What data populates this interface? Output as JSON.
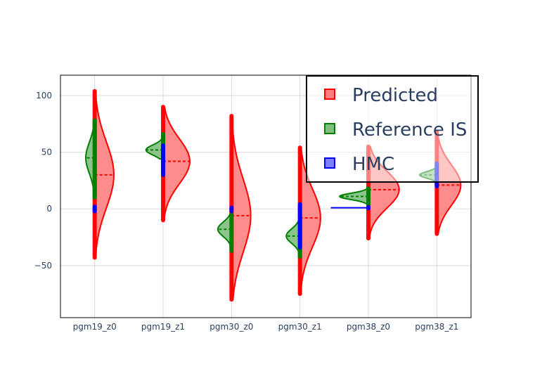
{
  "chart_data": {
    "type": "violin",
    "categories": [
      "pgm19_z0",
      "pgm19_z1",
      "pgm30_z0",
      "pgm30_z1",
      "pgm38_z0",
      "pgm38_z1"
    ],
    "ylim": [
      -96,
      118
    ],
    "yticks": [
      -50,
      0,
      50,
      100
    ],
    "ytick_labels": [
      "−50",
      "0",
      "50",
      "100"
    ],
    "grid": true,
    "legend_position": "top-right",
    "series": [
      {
        "name": "Predicted",
        "side": "right",
        "color": "#ff0000",
        "fill": "#ff7f7f",
        "median": [
          30,
          42,
          -6,
          -8,
          17,
          21
        ],
        "range": [
          [
            -43,
            104
          ],
          [
            -10,
            90
          ],
          [
            -80,
            82
          ],
          [
            -75,
            54
          ],
          [
            -26,
            55
          ],
          [
            -22,
            68
          ]
        ],
        "peak_width": [
          0.28,
          0.39,
          0.28,
          0.3,
          0.45,
          0.35
        ]
      },
      {
        "name": "Reference IS",
        "side": "left",
        "color": "#008000",
        "fill": "#7fbf7f",
        "median": [
          45,
          52,
          -18,
          -24,
          11,
          30
        ],
        "range": [
          [
            10,
            78
          ],
          [
            44,
            66
          ],
          [
            -37,
            -5
          ],
          [
            -42,
            -10
          ],
          [
            4,
            18
          ],
          [
            24,
            38
          ]
        ],
        "peak_width": [
          0.13,
          0.25,
          0.2,
          0.2,
          0.42,
          0.25
        ]
      },
      {
        "name": "HMC",
        "side": "left",
        "color": "#0000ff",
        "fill": "#7f7fff",
        "median": [
          0,
          42,
          0,
          -27,
          1,
          27
        ],
        "range": [
          [
            -2,
            2
          ],
          [
            30,
            56
          ],
          [
            -2,
            1
          ],
          [
            -34,
            4
          ],
          [
            0.5,
            1.5
          ],
          [
            20,
            40
          ]
        ],
        "peak_width": [
          0.02,
          0.01,
          0.02,
          0.03,
          0.55,
          0.01
        ]
      }
    ]
  }
}
